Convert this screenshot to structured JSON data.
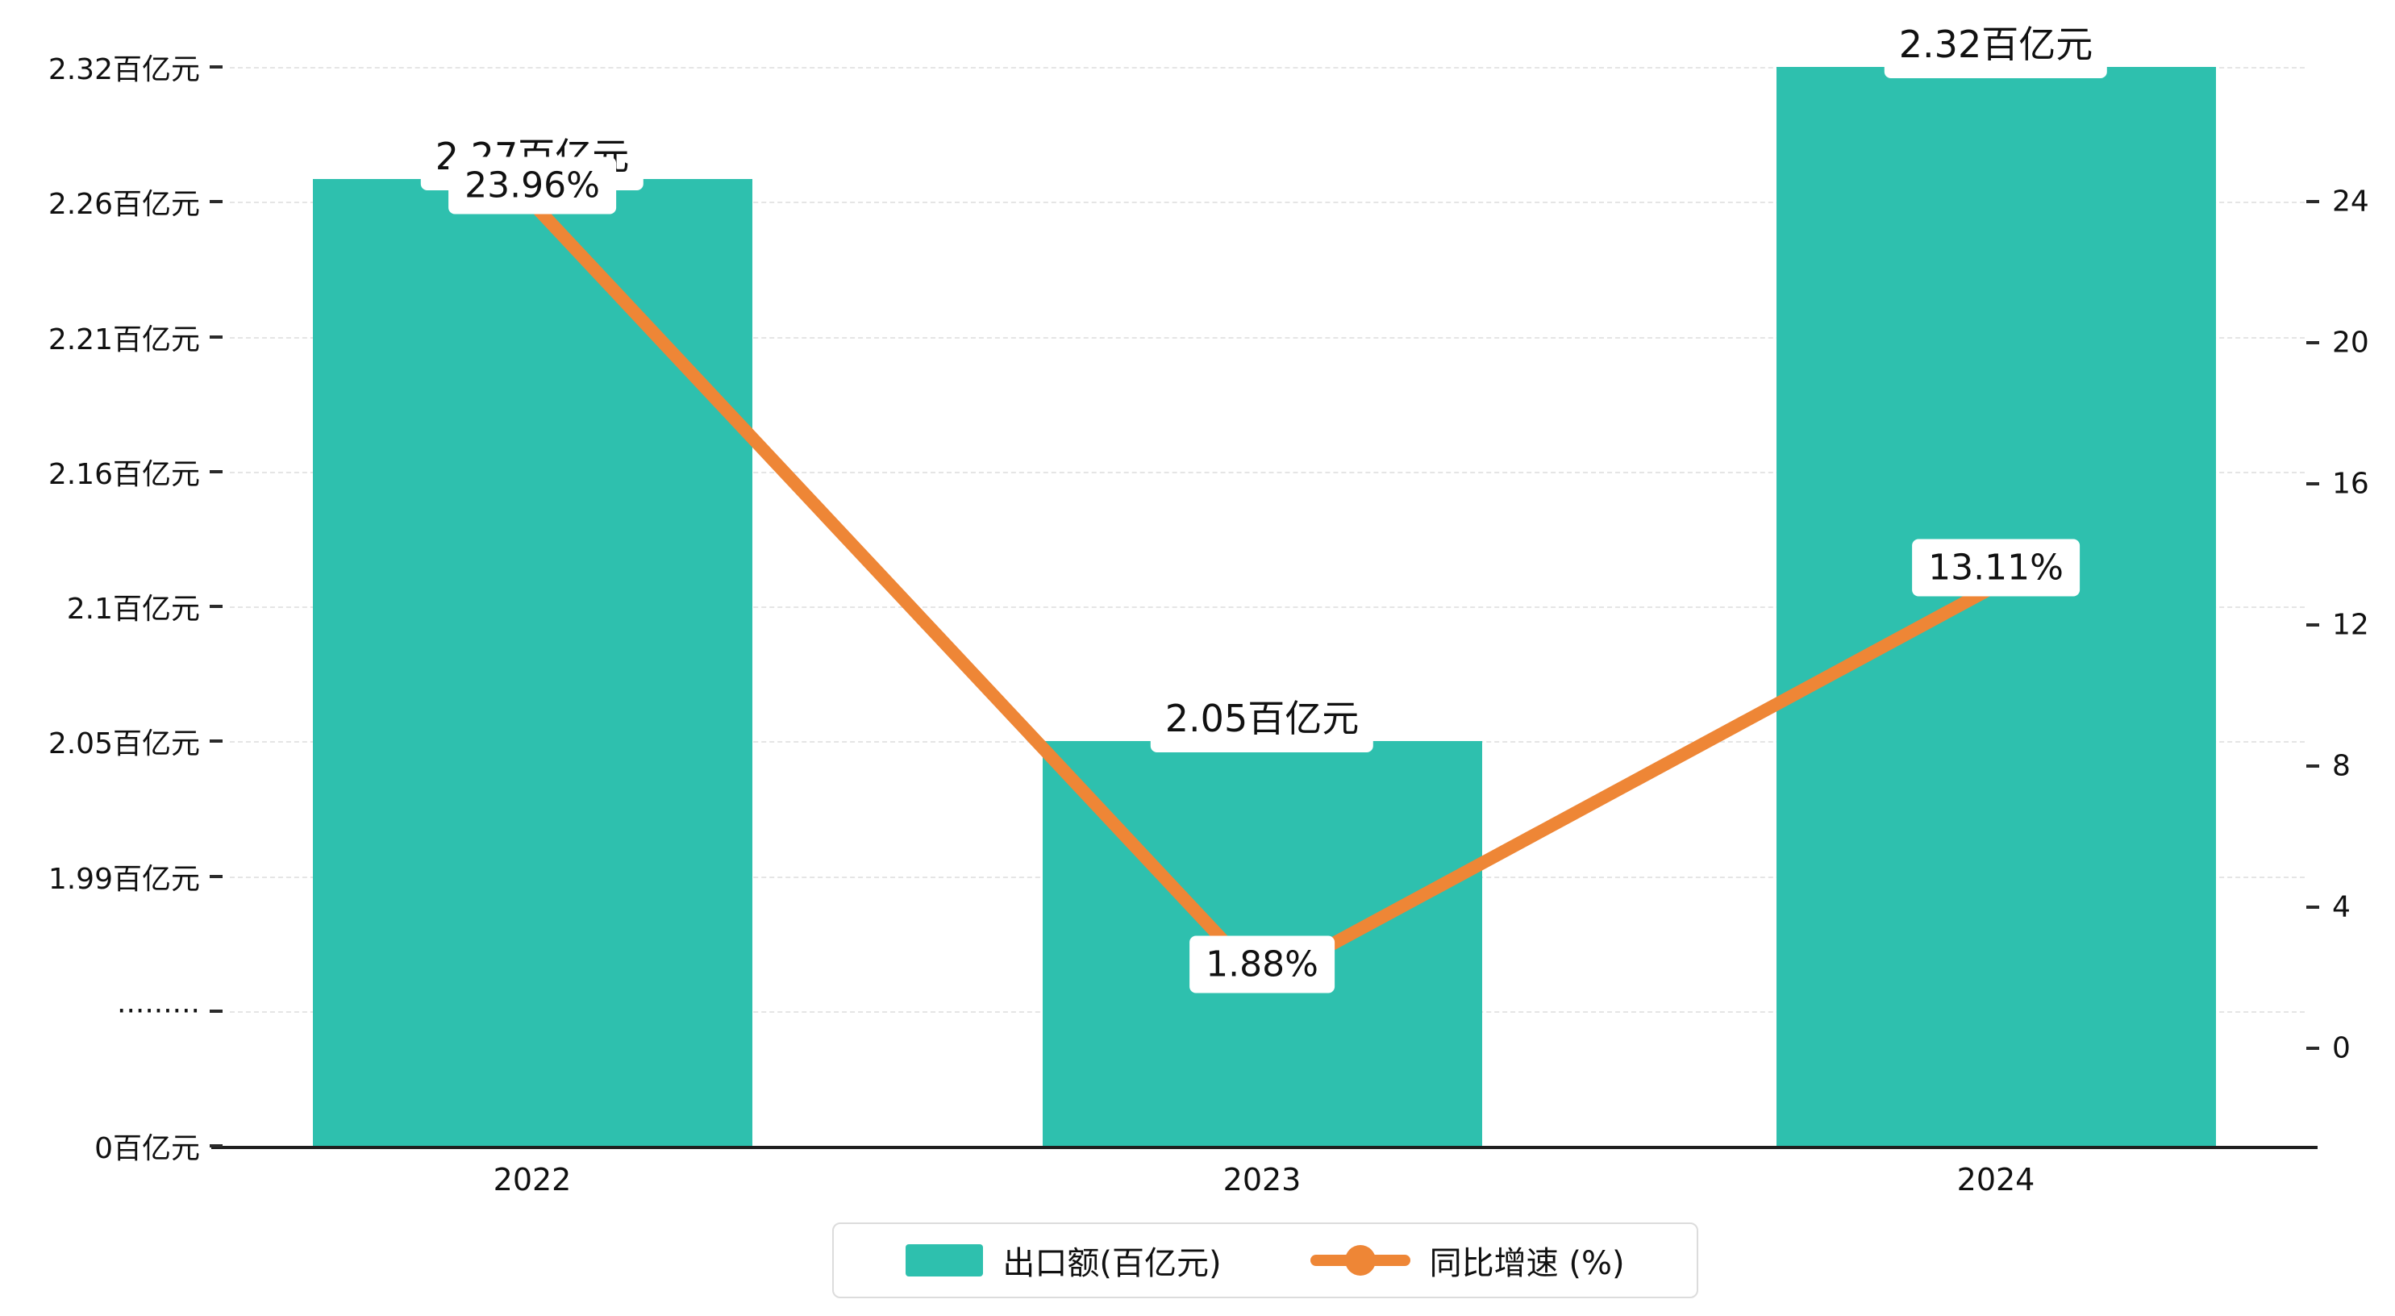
{
  "chart_data": {
    "type": "bar",
    "subtype": "bar+line-combo",
    "categories": [
      "2022",
      "2023",
      "2024"
    ],
    "series": [
      {
        "name": "出口额(百亿元)",
        "type": "bar",
        "color": "#2ec0ae",
        "values": [
          2.27,
          2.05,
          2.32
        ],
        "value_labels": [
          "2.27百亿元",
          "2.05百亿元",
          "2.32百亿元"
        ]
      },
      {
        "name": "同比增速 (%)",
        "type": "line",
        "color": "#ee8636",
        "values": [
          23.96,
          1.88,
          13.11
        ],
        "value_labels": [
          "23.96%",
          "1.88%",
          "13.11%"
        ]
      }
    ],
    "left_axis": {
      "unit": "百亿元",
      "broken_axis": true,
      "ticks": [
        {
          "label": "0百亿元",
          "value": 0
        },
        {
          "label": "·········",
          "value": null
        },
        {
          "label": "1.99百亿元",
          "value": 1.99
        },
        {
          "label": "2.05百亿元",
          "value": 2.05
        },
        {
          "label": "2.1百亿元",
          "value": 2.1
        },
        {
          "label": "2.16百亿元",
          "value": 2.16
        },
        {
          "label": "2.21百亿元",
          "value": 2.21
        },
        {
          "label": "2.26百亿元",
          "value": 2.26
        },
        {
          "label": "2.32百亿元",
          "value": 2.32
        }
      ]
    },
    "right_axis": {
      "unit": "%",
      "min": 0,
      "max": 24,
      "ticks": [
        0,
        4,
        8,
        12,
        16,
        20,
        24
      ]
    },
    "legend": [
      {
        "label": "出口额(百亿元)",
        "marker": "rect",
        "color": "#2ec0ae"
      },
      {
        "label": "同比增速 (%)",
        "marker": "line-dot",
        "color": "#ee8636"
      }
    ],
    "grid": "dashed-horizontal",
    "background": "#ffffff"
  }
}
